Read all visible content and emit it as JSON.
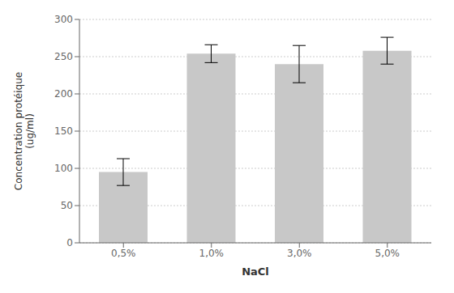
{
  "chart_data": {
    "type": "bar",
    "categories": [
      "0,5%",
      "1,0%",
      "3,0%",
      "5,0%"
    ],
    "values": [
      95,
      254,
      240,
      258
    ],
    "errors": [
      18,
      12,
      25,
      18
    ],
    "color": "#c8c8c8",
    "xlabel": "NaCl",
    "ylabel": "Concentration protéique\n(ug/ml)",
    "ylim": [
      0,
      300
    ],
    "yticks": [
      0,
      50,
      100,
      150,
      200,
      250,
      300
    ],
    "grid": true
  }
}
